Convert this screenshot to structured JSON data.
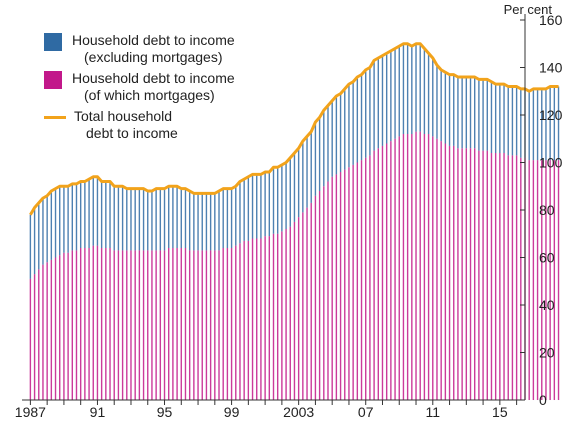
{
  "chart_data": {
    "type": "bar",
    "subtype": "stacked bars with overlaid line",
    "y_unit_label": "Per cent",
    "ylim": [
      0,
      160
    ],
    "yticks": [
      0,
      20,
      40,
      60,
      80,
      100,
      120,
      140,
      160
    ],
    "y_axis_side": "right",
    "grid": false,
    "legend_placement": "top-left",
    "x_start": 1987.0,
    "x_step": 0.25,
    "x_tick_labels": [
      {
        "x": 1987,
        "label": "1987"
      },
      {
        "x": 1991,
        "label": "91"
      },
      {
        "x": 1995,
        "label": "95"
      },
      {
        "x": 1999,
        "label": "99"
      },
      {
        "x": 2003,
        "label": "2003"
      },
      {
        "x": 2007,
        "label": "07"
      },
      {
        "x": 2011,
        "label": "11"
      },
      {
        "x": 2015,
        "label": "15"
      }
    ],
    "series": [
      {
        "name": "Household debt to income (of which mortgages)",
        "legend_lines": [
          "Household debt to income",
          "(of which mortgages)"
        ],
        "kind": "bar",
        "color": "#c2188a",
        "values": [
          51,
          53,
          55,
          57,
          58,
          59,
          60,
          61,
          62,
          62,
          63,
          63,
          64,
          64,
          64,
          65,
          65,
          64,
          64,
          64,
          63,
          63,
          63,
          63,
          63,
          63,
          63,
          63,
          63,
          63,
          63,
          63,
          63,
          64,
          64,
          64,
          64,
          64,
          63,
          63,
          63,
          63,
          63,
          63,
          63,
          63,
          64,
          64,
          64,
          65,
          66,
          67,
          67,
          68,
          68,
          68,
          69,
          69,
          70,
          70,
          71,
          72,
          73,
          75,
          77,
          79,
          81,
          83,
          86,
          88,
          90,
          92,
          94,
          95,
          96,
          97,
          98,
          99,
          100,
          101,
          102,
          103,
          105,
          106,
          107,
          108,
          109,
          110,
          111,
          112,
          112,
          112,
          113,
          113,
          112,
          112,
          111,
          110,
          109,
          108,
          107,
          107,
          106,
          106,
          106,
          106,
          106,
          105,
          105,
          105,
          104,
          104,
          104,
          104,
          103,
          103,
          103,
          102,
          102,
          101,
          101,
          101,
          101,
          101,
          101,
          101,
          101
        ]
      },
      {
        "name": "Household debt to income (excluding mortgages)",
        "legend_lines": [
          "Household debt to income",
          "(excluding mortgages)"
        ],
        "kind": "bar",
        "color": "#2f6aa3",
        "values": [
          27,
          28,
          28,
          28,
          28,
          29,
          29,
          29,
          28,
          28,
          28,
          28,
          28,
          28,
          29,
          29,
          29,
          28,
          28,
          28,
          27,
          27,
          27,
          26,
          26,
          26,
          26,
          26,
          25,
          25,
          26,
          26,
          26,
          26,
          26,
          26,
          25,
          25,
          25,
          24,
          24,
          24,
          24,
          24,
          24,
          25,
          25,
          25,
          25,
          25,
          26,
          26,
          27,
          27,
          27,
          27,
          27,
          27,
          28,
          28,
          28,
          28,
          29,
          29,
          29,
          30,
          30,
          30,
          31,
          31,
          32,
          32,
          32,
          33,
          33,
          34,
          35,
          35,
          36,
          36,
          37,
          37,
          38,
          38,
          38,
          38,
          38,
          38,
          38,
          38,
          38,
          37,
          37,
          37,
          36,
          34,
          33,
          31,
          30,
          30,
          30,
          30,
          30,
          30,
          30,
          30,
          30,
          30,
          30,
          30,
          30,
          29,
          29,
          29,
          29,
          29,
          29,
          29,
          29,
          29,
          30,
          30,
          30,
          30,
          31,
          31,
          31
        ]
      },
      {
        "name": "Total household debt to income",
        "legend_lines": [
          "Total household",
          "debt to income"
        ],
        "kind": "line",
        "color": "#f2a31b",
        "values": [
          78,
          81,
          83,
          85,
          86,
          88,
          89,
          90,
          90,
          90,
          91,
          91,
          92,
          92,
          93,
          94,
          94,
          92,
          92,
          92,
          90,
          90,
          90,
          89,
          89,
          89,
          89,
          89,
          88,
          88,
          89,
          89,
          89,
          90,
          90,
          90,
          89,
          89,
          88,
          87,
          87,
          87,
          87,
          87,
          87,
          88,
          89,
          89,
          89,
          90,
          92,
          93,
          94,
          95,
          95,
          95,
          96,
          96,
          98,
          98,
          99,
          100,
          102,
          104,
          106,
          109,
          111,
          113,
          117,
          119,
          122,
          124,
          126,
          128,
          129,
          131,
          133,
          134,
          136,
          137,
          139,
          140,
          143,
          144,
          145,
          146,
          147,
          148,
          149,
          150,
          150,
          149,
          150,
          150,
          148,
          146,
          144,
          141,
          139,
          138,
          137,
          137,
          136,
          136,
          136,
          136,
          136,
          135,
          135,
          135,
          134,
          133,
          133,
          133,
          132,
          132,
          132,
          131,
          131,
          130,
          131,
          131,
          131,
          131,
          132,
          132,
          132
        ]
      }
    ]
  }
}
